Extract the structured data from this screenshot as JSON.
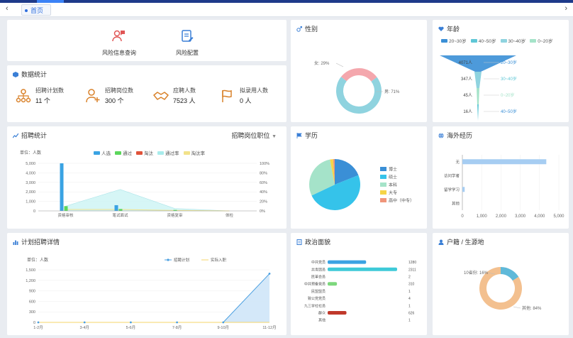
{
  "tab": {
    "label": "首页"
  },
  "quick": [
    {
      "label": "风险信息查询",
      "icon": "user-alert-icon"
    },
    {
      "label": "风险配置",
      "icon": "document-edit-icon"
    }
  ],
  "stats": {
    "title": "数据统计",
    "items": [
      {
        "label": "招聘计划数",
        "value": "11 个",
        "icon": "org-chart-icon"
      },
      {
        "label": "招聘岗位数",
        "value": "300 个",
        "icon": "add-user-icon"
      },
      {
        "label": "应聘人数",
        "value": "7523 人",
        "icon": "handshake-icon"
      },
      {
        "label": "拟录用人数",
        "value": "0 人",
        "icon": "flag-icon"
      }
    ]
  },
  "gender": {
    "title": "性别",
    "labels": [
      "女: 29%",
      "男: 71%"
    ],
    "chart_data": {
      "type": "pie",
      "style": "donut",
      "labels": [
        "女",
        "男"
      ],
      "values": [
        29,
        71
      ],
      "colors": [
        "#f4a7ad",
        "#8fd3df"
      ]
    }
  },
  "age": {
    "title": "年龄",
    "legend": [
      "20~30岁",
      "40~50岁",
      "30~40岁",
      "0~20岁"
    ],
    "labels": [
      "4071人",
      "20~30岁",
      "347人",
      "30~40岁",
      "45人",
      "0~20岁",
      "16人",
      "40~50岁"
    ],
    "chart_data": {
      "type": "funnel",
      "categories": [
        "20~30岁",
        "30~40岁",
        "0~20岁",
        "40~50岁"
      ],
      "values": [
        4071,
        347,
        45,
        16
      ],
      "colors": [
        "#3a8fd6",
        "#8fd3df",
        "#a5e3c9",
        "#5fc7d6"
      ]
    }
  },
  "recruit": {
    "title": "招聘统计",
    "dropdown": "招聘岗位职位",
    "ylabel": "单位：人数",
    "legend": [
      "人选",
      "通过",
      "淘汰",
      "通过率",
      "淘汰率"
    ],
    "legend_colors": [
      "#3aa3e3",
      "#5cd65c",
      "#e0533a",
      "#a8ecec",
      "#f2e28a"
    ],
    "yticks": [
      "5,000",
      "4,000",
      "3,000",
      "2,000",
      "1,000",
      "0"
    ],
    "y2ticks": [
      "100%",
      "80%",
      "60%",
      "40%",
      "20%",
      "0%"
    ],
    "chart_data": {
      "type": "bar",
      "categories": [
        "资格审核",
        "笔试面试",
        "资格复审",
        "体检"
      ],
      "ylim": [
        0,
        5000
      ],
      "series": [
        {
          "name": "人选",
          "values": [
            5000,
            600,
            0,
            0
          ]
        },
        {
          "name": "通过",
          "values": [
            500,
            200,
            100,
            0
          ]
        },
        {
          "name": "淘汰",
          "values": [
            0,
            0,
            0,
            0
          ]
        },
        {
          "name": "通过率",
          "axis": "right",
          "values": [
            10,
            45,
            5,
            0
          ]
        },
        {
          "name": "淘汰率",
          "axis": "right",
          "values": [
            3,
            3,
            1,
            0
          ]
        }
      ]
    }
  },
  "edu": {
    "title": "学历",
    "legend": [
      "博士",
      "硕士",
      "本科",
      "大专",
      "高中（中专）"
    ],
    "colors": [
      "#3a8fd6",
      "#35c3ea",
      "#a5e3c9",
      "#f5d547",
      "#f0957a"
    ],
    "chart_data": {
      "type": "pie",
      "labels": [
        "博士",
        "硕士",
        "本科",
        "大专",
        "高中（中专）"
      ],
      "values": [
        19,
        49,
        29,
        2,
        1
      ]
    }
  },
  "area": {
    "title": "海外经历",
    "cats": [
      "无",
      "访问学者",
      "留学学习",
      "其他"
    ],
    "xticks": [
      "0",
      "1,000",
      "2,000",
      "3,000",
      "4,000",
      "5,000"
    ],
    "chart_data": {
      "type": "bar",
      "orientation": "horizontal",
      "categories": [
        "无",
        "访问学者",
        "留学学习",
        "其他"
      ],
      "values": [
        4350,
        0,
        120,
        0
      ],
      "xlim": [
        0,
        5000
      ]
    }
  },
  "plan": {
    "title": "计划招聘详情",
    "ylabel": "单位：人数",
    "legend": [
      "招聘计划",
      "实际入职"
    ],
    "yticks": [
      "1,500",
      "1,200",
      "900",
      "600",
      "300",
      "0"
    ],
    "chart_data": {
      "type": "area",
      "categories": [
        "1-2月",
        "3-4月",
        "5-6月",
        "7-8月",
        "9-10月",
        "11-12月"
      ],
      "ylim": [
        0,
        1500
      ],
      "series": [
        {
          "name": "招聘计划",
          "values": [
            0,
            0,
            0,
            0,
            0,
            1390
          ]
        },
        {
          "name": "实际入职",
          "values": [
            0,
            0,
            0,
            0,
            0,
            0
          ]
        }
      ]
    }
  },
  "policy": {
    "title": "政治面貌",
    "rows": [
      {
        "label": "中共党员",
        "value": "1280"
      },
      {
        "label": "共青团员",
        "value": "2311"
      },
      {
        "label": "民革会员",
        "value": "2"
      },
      {
        "label": "中共预备党员",
        "value": "310"
      },
      {
        "label": "民盟盟员",
        "value": "1"
      },
      {
        "label": "致公党党员",
        "value": "4"
      },
      {
        "label": "九三学社社员",
        "value": "1"
      },
      {
        "label": "群众",
        "value": "626"
      },
      {
        "label": "其他",
        "value": "1"
      }
    ],
    "chart_data": {
      "type": "bar",
      "orientation": "horizontal",
      "categories": [
        "中共党员",
        "共青团员",
        "民革会员",
        "中共预备党员",
        "民盟盟员",
        "致公党党员",
        "九三学社社员",
        "群众",
        "其他"
      ],
      "values": [
        1280,
        2311,
        2,
        310,
        1,
        4,
        1,
        626,
        1
      ]
    }
  },
  "native": {
    "title": "户籍 / 生源地",
    "labels": [
      "10省份: 16%",
      "其他: 84%"
    ],
    "chart_data": {
      "type": "pie",
      "style": "donut",
      "labels": [
        "10省份",
        "其他"
      ],
      "values": [
        16,
        84
      ],
      "colors": [
        "#5fb9d9",
        "#f3c08f"
      ]
    }
  }
}
